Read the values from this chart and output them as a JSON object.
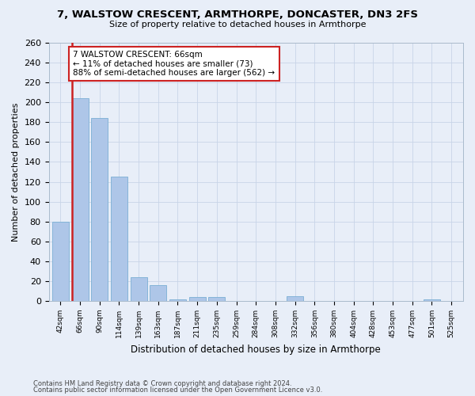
{
  "title_line1": "7, WALSTOW CRESCENT, ARMTHORPE, DONCASTER, DN3 2FS",
  "title_line2": "Size of property relative to detached houses in Armthorpe",
  "xlabel": "Distribution of detached houses by size in Armthorpe",
  "ylabel": "Number of detached properties",
  "categories": [
    "42sqm",
    "66sqm",
    "90sqm",
    "114sqm",
    "139sqm",
    "163sqm",
    "187sqm",
    "211sqm",
    "235sqm",
    "259sqm",
    "284sqm",
    "308sqm",
    "332sqm",
    "356sqm",
    "380sqm",
    "404sqm",
    "428sqm",
    "453sqm",
    "477sqm",
    "501sqm",
    "525sqm"
  ],
  "values": [
    80,
    204,
    184,
    125,
    24,
    16,
    2,
    4,
    4,
    0,
    0,
    0,
    5,
    0,
    0,
    0,
    0,
    0,
    0,
    2,
    0
  ],
  "highlight_index": 1,
  "bar_color": "#aec6e8",
  "bar_edge_color": "#7aafd4",
  "vline_color": "#cc2222",
  "ylim": [
    0,
    260
  ],
  "yticks": [
    0,
    20,
    40,
    60,
    80,
    100,
    120,
    140,
    160,
    180,
    200,
    220,
    240,
    260
  ],
  "annotation_text": "7 WALSTOW CRESCENT: 66sqm\n← 11% of detached houses are smaller (73)\n88% of semi-detached houses are larger (562) →",
  "annotation_box_color": "#ffffff",
  "annotation_box_edge": "#cc2222",
  "footer_line1": "Contains HM Land Registry data © Crown copyright and database right 2024.",
  "footer_line2": "Contains public sector information licensed under the Open Government Licence v3.0.",
  "background_color": "#e8eef8",
  "grid_color": "#c8d4e8"
}
